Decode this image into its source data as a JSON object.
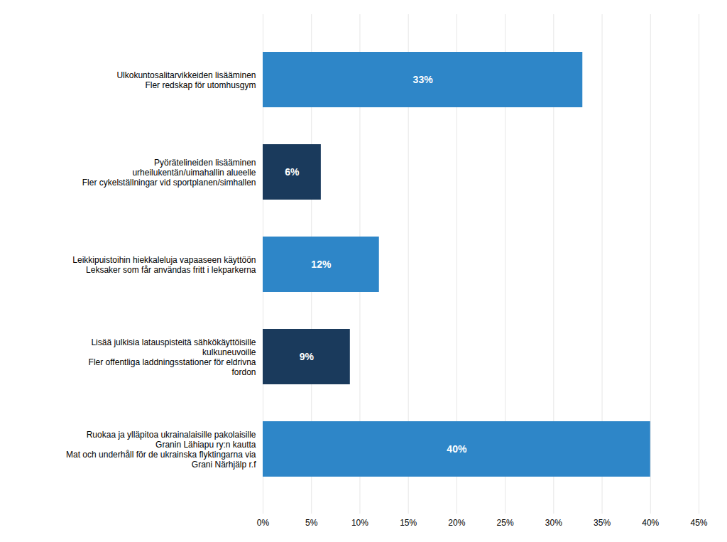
{
  "chart_data": {
    "type": "bar",
    "orientation": "horizontal",
    "categories": [
      "Ulkokuntosalitarvikkeiden lisääminen\nFler redskap för utomhusgym",
      "Pyörätelineiden lisääminen\nurheilukentän/uimahallin alueelle\nFler cykelställningar vid sportplanen/simhallen",
      "Leikkipuistoihin hiekkaleluja vapaaseen käyttöön\nLeksaker som får användas fritt i lekparkerna",
      "Lisää julkisia latauspisteitä sähkökäyttöisille\nkulkuneuvoille\nFler offentliga laddningsstationer för eldrivna\nfordon",
      "Ruokaa ja ylläpitoa ukrainalaisille pakolaisille\nGranin Lähiapu ry:n kautta\nMat och underhåll för de ukrainska flyktingarna via\nGrani Närhjälp r.f"
    ],
    "values": [
      33,
      6,
      12,
      9,
      40
    ],
    "value_labels": [
      "33%",
      "6%",
      "12%",
      "9%",
      "40%"
    ],
    "data_labels": true,
    "colors": [
      "#2E86C8",
      "#1A3A5C",
      "#2E86C8",
      "#1A3A5C",
      "#2E86C8"
    ],
    "xlim": [
      0,
      45
    ],
    "xticks": [
      {
        "value": 0,
        "label": "0%"
      },
      {
        "value": 5,
        "label": "5%"
      },
      {
        "value": 10,
        "label": "10%"
      },
      {
        "value": 15,
        "label": "15%"
      },
      {
        "value": 20,
        "label": "20%"
      },
      {
        "value": 25,
        "label": "25%"
      },
      {
        "value": 30,
        "label": "30%"
      },
      {
        "value": 35,
        "label": "35%"
      },
      {
        "value": 40,
        "label": "40%"
      },
      {
        "value": 45,
        "label": "45%"
      }
    ],
    "grid": true
  }
}
